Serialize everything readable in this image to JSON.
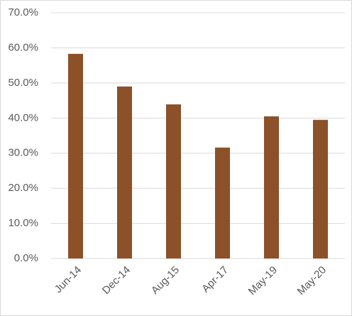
{
  "chart_data": {
    "type": "bar",
    "categories": [
      "Jun-14",
      "Dec-14",
      "Aug-15",
      "Apr-17",
      "May-19",
      "May-20"
    ],
    "values": [
      58.3,
      49.0,
      43.9,
      31.6,
      40.5,
      39.5
    ],
    "color": "#8c5128",
    "ylim": [
      0,
      70
    ],
    "yticks": [
      {
        "value": 0,
        "label": "0.0%"
      },
      {
        "value": 10,
        "label": "10.0%"
      },
      {
        "value": 20,
        "label": "20.0%"
      },
      {
        "value": 30,
        "label": "30.0%"
      },
      {
        "value": 40,
        "label": "40.0%"
      },
      {
        "value": 50,
        "label": "50.0%"
      },
      {
        "value": 60,
        "label": "60.0%"
      },
      {
        "value": 70,
        "label": "70.0%"
      }
    ],
    "grid": true
  }
}
